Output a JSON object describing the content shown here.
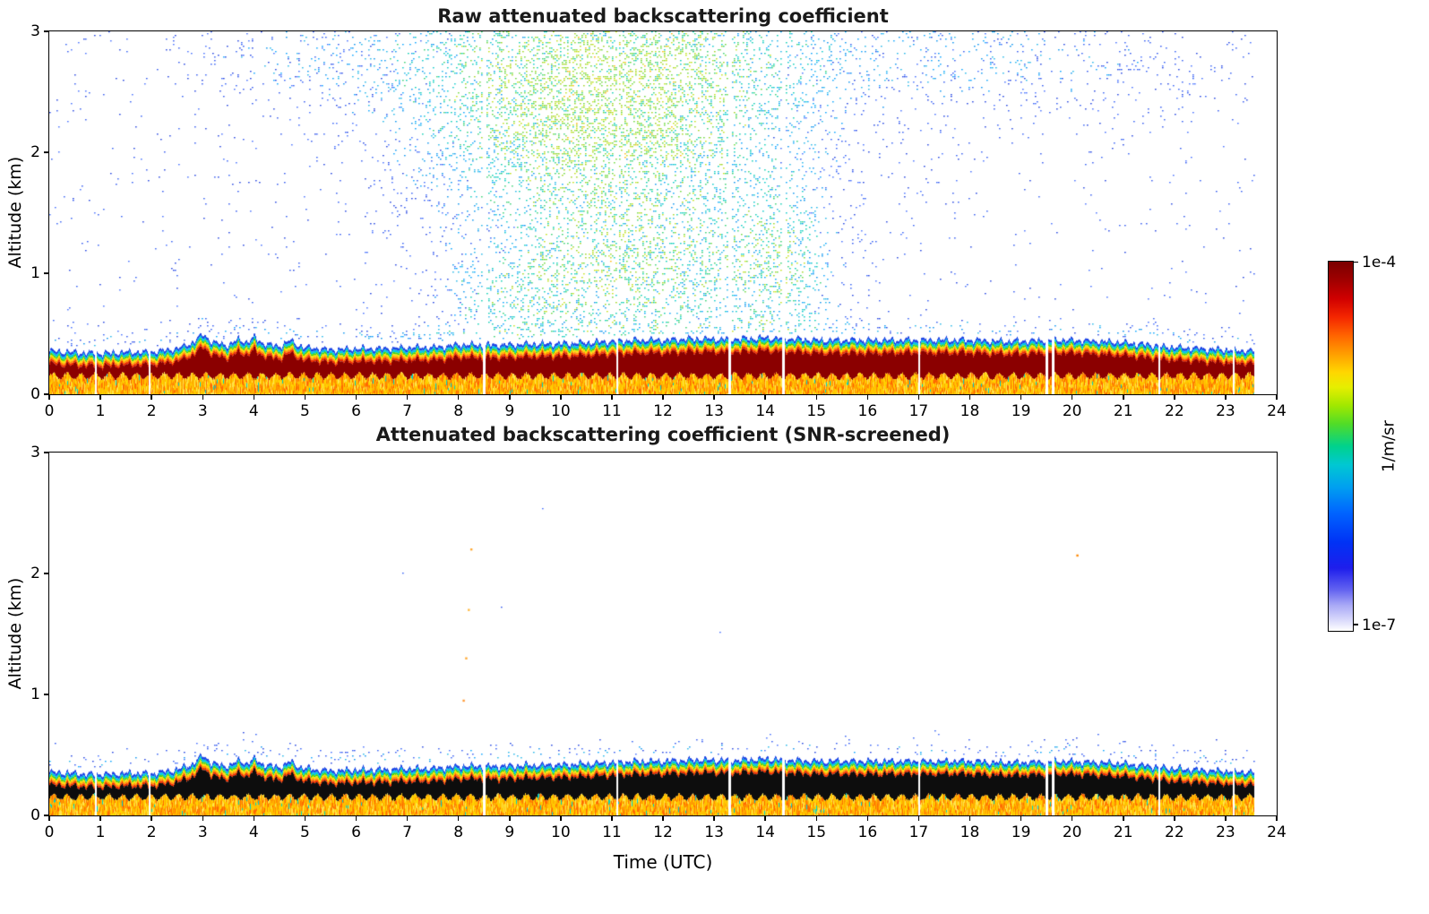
{
  "chart_data": [
    {
      "type": "heatmap",
      "title": "Raw attenuated backscattering coefficient",
      "xlabel": "",
      "ylabel": "Altitude (km)",
      "xlim": [
        0,
        24
      ],
      "ylim": [
        0,
        3
      ],
      "x_ticks": [
        0,
        1,
        2,
        3,
        4,
        5,
        6,
        7,
        8,
        9,
        10,
        11,
        12,
        13,
        14,
        15,
        16,
        17,
        18,
        19,
        20,
        21,
        22,
        23,
        24
      ],
      "y_ticks": [
        0,
        1,
        2,
        3
      ],
      "grid": false,
      "colormap": "jet-like, logarithmic 1e-7 to 1e-4",
      "data_end_time": 23.55,
      "gap_times": [
        0.9,
        1.95,
        8.5,
        11.1,
        13.3,
        14.35,
        17.0,
        19.5,
        19.62,
        21.7,
        23.15
      ],
      "description": "Time-height lidar backscatter: strong aerosol/boundary layer below ~0.5 km all day (dark red core over yellow-orange streaks, rainbow fringe at layer top), plus low-SNR speckle noise filling the free troposphere, densest 7-15 UTC between 0.5 and 3 km.",
      "boundary_layer": {
        "t": [
          0,
          0.5,
          1,
          1.5,
          2,
          2.5,
          2.8,
          3.0,
          3.15,
          3.3,
          3.5,
          3.7,
          3.85,
          4.0,
          4.15,
          4.3,
          4.5,
          4.7,
          4.85,
          5.0,
          5.5,
          6.0,
          6.5,
          7.0,
          7.5,
          8.0,
          8.5,
          9.0,
          9.5,
          10.0,
          10.5,
          11.0,
          11.5,
          12.0,
          12.5,
          13.0,
          13.5,
          14.0,
          14.5,
          15.0,
          15.5,
          16.0,
          16.5,
          17.0,
          17.5,
          18.0,
          18.5,
          19.0,
          19.5,
          20.0,
          20.5,
          21.0,
          21.5,
          22.0,
          22.5,
          23.0,
          23.55
        ],
        "top_km": [
          0.36,
          0.35,
          0.34,
          0.35,
          0.35,
          0.38,
          0.43,
          0.5,
          0.44,
          0.42,
          0.41,
          0.46,
          0.43,
          0.47,
          0.43,
          0.41,
          0.4,
          0.45,
          0.41,
          0.39,
          0.37,
          0.38,
          0.38,
          0.39,
          0.39,
          0.41,
          0.41,
          0.41,
          0.42,
          0.42,
          0.43,
          0.44,
          0.45,
          0.45,
          0.46,
          0.46,
          0.46,
          0.47,
          0.46,
          0.45,
          0.45,
          0.45,
          0.45,
          0.45,
          0.45,
          0.45,
          0.44,
          0.44,
          0.45,
          0.45,
          0.44,
          0.43,
          0.41,
          0.39,
          0.38,
          0.37,
          0.36
        ]
      },
      "layer_colors": {
        "fringe": [
          "#1e46e6",
          "#00c8e6",
          "#4cd415",
          "#ffe000",
          "#ff9900",
          "#f03000"
        ],
        "core": "#8b0000",
        "under": [
          "#ffd400",
          "#ffc800",
          "#ffaa00",
          "#ff8c00",
          "#ffe34d",
          "#ff6a00",
          "#ffbf00"
        ],
        "under_accent": "#00d2c8"
      },
      "noise": {
        "base": 0.015,
        "blobs": [
          {
            "t": 10.8,
            "alt": 2.35,
            "st": 3.2,
            "sa": 0.8,
            "amp": 0.62
          },
          {
            "t": 11.3,
            "alt": 1.0,
            "st": 2.6,
            "sa": 0.62,
            "amp": 0.4
          },
          {
            "t": 9.0,
            "alt": 0.75,
            "st": 1.2,
            "sa": 0.35,
            "amp": 0.18
          },
          {
            "t": 14.3,
            "alt": 1.05,
            "st": 1.0,
            "sa": 0.7,
            "amp": 0.28
          },
          {
            "t": 12.0,
            "alt": 2.95,
            "st": 6.5,
            "sa": 0.5,
            "amp": 0.16
          },
          {
            "t": 19.5,
            "alt": 2.75,
            "st": 3.5,
            "sa": 0.45,
            "amp": 0.09
          },
          {
            "t": 4.6,
            "alt": 2.85,
            "st": 2.2,
            "sa": 0.45,
            "amp": 0.07
          }
        ],
        "colors": {
          "low": [
            "#2a52f0",
            "#1c3de0",
            "#3f6cff",
            "#2e5cf6"
          ],
          "mid": [
            "#00a0ff",
            "#1ab4e8",
            "#0090f0"
          ],
          "high": [
            "#00cdb0",
            "#00c8c8",
            "#2fd06e"
          ],
          "vhigh": [
            "#9bd414",
            "#c0e010",
            "#66d832"
          ],
          "hot": "#ffb400"
        }
      }
    },
    {
      "type": "heatmap",
      "title": "Attenuated backscattering coefficient (SNR-screened)",
      "xlabel": "Time (UTC)",
      "ylabel": "Altitude (km)",
      "xlim": [
        0,
        24
      ],
      "ylim": [
        0,
        3
      ],
      "x_ticks": [
        0,
        1,
        2,
        3,
        4,
        5,
        6,
        7,
        8,
        9,
        10,
        11,
        12,
        13,
        14,
        15,
        16,
        17,
        18,
        19,
        20,
        21,
        22,
        23,
        24
      ],
      "y_ticks": [
        0,
        1,
        2,
        3
      ],
      "grid": false,
      "colormap": "jet-like, logarithmic 1e-7 to 1e-4",
      "data_end_time": 23.55,
      "gap_times": [
        0.9,
        1.95,
        8.5,
        11.1,
        13.3,
        14.35,
        17.0,
        19.5,
        19.62,
        21.7,
        23.15
      ],
      "description": "Same field after SNR screening: free-troposphere noise removed (white), boundary-layer core rendered black/saturated over yellow-orange streaks, thin rainbow fringe at layer top; only a few residual specks remain aloft.",
      "boundary_layer": {
        "t": [
          0,
          0.5,
          1,
          1.5,
          2,
          2.5,
          2.8,
          3.0,
          3.15,
          3.3,
          3.5,
          3.7,
          3.85,
          4.0,
          4.15,
          4.3,
          4.5,
          4.7,
          4.85,
          5.0,
          5.5,
          6.0,
          6.5,
          7.0,
          7.5,
          8.0,
          8.5,
          9.0,
          9.5,
          10.0,
          10.5,
          11.0,
          11.5,
          12.0,
          12.5,
          13.0,
          13.5,
          14.0,
          14.5,
          15.0,
          15.5,
          16.0,
          16.5,
          17.0,
          17.5,
          18.0,
          18.5,
          19.0,
          19.5,
          20.0,
          20.5,
          21.0,
          21.5,
          22.0,
          22.5,
          23.0,
          23.55
        ],
        "top_km": [
          0.36,
          0.35,
          0.34,
          0.35,
          0.35,
          0.38,
          0.43,
          0.5,
          0.44,
          0.42,
          0.41,
          0.46,
          0.43,
          0.47,
          0.43,
          0.41,
          0.4,
          0.45,
          0.41,
          0.39,
          0.37,
          0.38,
          0.38,
          0.39,
          0.39,
          0.41,
          0.41,
          0.41,
          0.42,
          0.42,
          0.43,
          0.44,
          0.45,
          0.45,
          0.46,
          0.46,
          0.46,
          0.47,
          0.46,
          0.45,
          0.45,
          0.45,
          0.45,
          0.45,
          0.45,
          0.45,
          0.44,
          0.44,
          0.45,
          0.45,
          0.44,
          0.43,
          0.41,
          0.39,
          0.38,
          0.37,
          0.36
        ]
      },
      "layer_colors": {
        "fringe": [
          "#1e46e6",
          "#00c8e6",
          "#4cd415",
          "#ffe000",
          "#ff9900",
          "#f03000"
        ],
        "core": "#0d0d0d",
        "under": [
          "#ffd400",
          "#ffc800",
          "#ffaa00",
          "#ff8c00",
          "#ffe34d",
          "#ff6a00",
          "#ffbf00"
        ],
        "under_accent": "#00d2c8"
      },
      "noise": {
        "base": 0.0001,
        "blobs": [],
        "colors": {
          "low": [
            "#2a52f0",
            "#1c3de0",
            "#3f6cff",
            "#2e5cf6"
          ],
          "mid": [
            "#00a0ff",
            "#1ab4e8",
            "#0090f0"
          ],
          "high": [
            "#00cdb0",
            "#00c8c8",
            "#2fd06e"
          ],
          "vhigh": [
            "#9bd414",
            "#c0e010",
            "#66d832"
          ],
          "hot": "#ffb400"
        }
      },
      "residual_dots": [
        {
          "t": 8.25,
          "alt": 2.2,
          "color": "#ffaa33"
        },
        {
          "t": 8.2,
          "alt": 1.7,
          "color": "#ffbb44"
        },
        {
          "t": 8.15,
          "alt": 1.3,
          "color": "#ffaa33"
        },
        {
          "t": 8.1,
          "alt": 0.95,
          "color": "#ff9933"
        },
        {
          "t": 20.1,
          "alt": 2.15,
          "color": "#ff8800"
        }
      ]
    }
  ],
  "colorbar": {
    "label": "1/m/sr",
    "top_label": "1e-4",
    "bottom_label": "1e-7",
    "scale": "log",
    "vmin": "1e-7",
    "vmax": "1e-4",
    "gradient_stops": [
      "#7a0000 0%",
      "#a00000 5%",
      "#d00000 10%",
      "#f42600 15%",
      "#ff6400 20%",
      "#ff9e00 25%",
      "#ffd700 30%",
      "#e6ee00 34%",
      "#a0e800 39%",
      "#50dc28 44%",
      "#00d28c 50%",
      "#00c8d2 55%",
      "#00a0f0 61%",
      "#0064ff 68%",
      "#0032f5 76%",
      "#1e1eec 83%",
      "#6464f0 89%",
      "#a8a8f6 93%",
      "#d8d8fb 97%",
      "#ffffff 100%"
    ]
  }
}
